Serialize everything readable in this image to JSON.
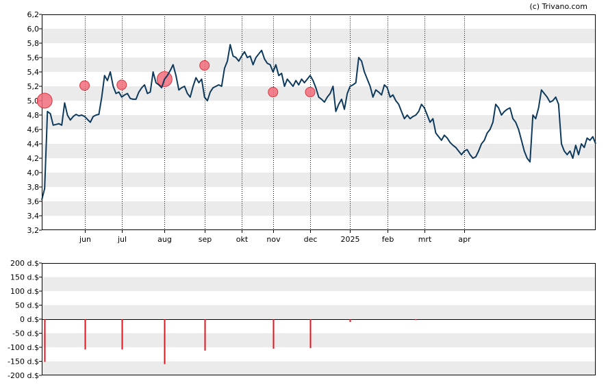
{
  "copyright": "(c) Trivano.com",
  "colors": {
    "price_line": "#0d3a5c",
    "bubble": "#f26d7d",
    "bubble_stroke": "#d9363e",
    "volume_bar": "#e0161e",
    "band": "#ebebeb",
    "vgrid": "#000000"
  },
  "chart_data": [
    {
      "type": "line",
      "title": "",
      "xlabel": "",
      "ylabel": "",
      "ylim": [
        3.2,
        6.2
      ],
      "y_ticks": [
        "6,2",
        "6,0",
        "5,8",
        "5,6",
        "5,4",
        "5,2",
        "5,0",
        "4,8",
        "4,6",
        "4,4",
        "4,2",
        "4,0",
        "3,8",
        "3,6",
        "3,4",
        "3,2"
      ],
      "x_ticks": [
        "jun",
        "jul",
        "aug",
        "sep",
        "okt",
        "nov",
        "dec",
        "2025",
        "feb",
        "mrt",
        "apr"
      ],
      "x_tick_index": [
        15,
        28,
        43,
        57,
        70,
        81,
        94,
        108,
        121,
        134,
        148
      ],
      "grid": "horizontal bands, dotted vertical lines at month starts",
      "series": [
        {
          "values": [
            3.62,
            3.78,
            4.85,
            4.82,
            4.66,
            4.67,
            4.68,
            4.66,
            4.97,
            4.8,
            4.73,
            4.78,
            4.81,
            4.79,
            4.8,
            4.78,
            4.74,
            4.7,
            4.78,
            4.8,
            4.81,
            5.05,
            5.35,
            5.28,
            5.4,
            5.2,
            5.1,
            5.12,
            5.05,
            5.08,
            5.1,
            5.03,
            5.02,
            5.02,
            5.12,
            5.18,
            5.22,
            5.1,
            5.12,
            5.4,
            5.25,
            5.22,
            5.18,
            5.3,
            5.35,
            5.42,
            5.5,
            5.35,
            5.15,
            5.18,
            5.2,
            5.1,
            5.05,
            5.2,
            5.32,
            5.25,
            5.3,
            5.05,
            5.0,
            5.12,
            5.18,
            5.2,
            5.22,
            5.2,
            5.45,
            5.55,
            5.78,
            5.62,
            5.6,
            5.55,
            5.62,
            5.68,
            5.6,
            5.62,
            5.5,
            5.6,
            5.65,
            5.7,
            5.58,
            5.52,
            5.5,
            5.4,
            5.5,
            5.35,
            5.38,
            5.2,
            5.3,
            5.25,
            5.2,
            5.28,
            5.22,
            5.3,
            5.25,
            5.3,
            5.35,
            5.28,
            5.18,
            5.05,
            5.02,
            4.98,
            5.05,
            5.1,
            5.2,
            4.85,
            4.95,
            5.02,
            4.88,
            5.1,
            5.2,
            5.22,
            5.25,
            5.6,
            5.55,
            5.4,
            5.3,
            5.2,
            5.05,
            5.15,
            5.12,
            5.08,
            5.22,
            5.18,
            5.05,
            5.08,
            5.0,
            4.95,
            4.85,
            4.75,
            4.8,
            4.75,
            4.78,
            4.8,
            4.85,
            4.95,
            4.9,
            4.8,
            4.7,
            4.75,
            4.55,
            4.5,
            4.45,
            4.52,
            4.48,
            4.42,
            4.38,
            4.35,
            4.3,
            4.25,
            4.3,
            4.32,
            4.25,
            4.2,
            4.22,
            4.3,
            4.4,
            4.45,
            4.55,
            4.6,
            4.7,
            4.95,
            4.9,
            4.8,
            4.85,
            4.88,
            4.9,
            4.75,
            4.7,
            4.6,
            4.45,
            4.3,
            4.2,
            4.15,
            4.8,
            4.75,
            4.9,
            5.15,
            5.1,
            5.05,
            4.98,
            5.0,
            5.05,
            4.95,
            4.4,
            4.3,
            4.25,
            4.3,
            4.2,
            4.38,
            4.25,
            4.4,
            4.35,
            4.48,
            4.45,
            4.5,
            4.4
          ]
        }
      ],
      "bubbles": [
        {
          "index": 1,
          "value": 5.0,
          "size": "large"
        },
        {
          "index": 15,
          "value": 5.21,
          "size": "small"
        },
        {
          "index": 28,
          "value": 5.22,
          "size": "small"
        },
        {
          "index": 43,
          "value": 5.3,
          "size": "large"
        },
        {
          "index": 57,
          "value": 5.49,
          "size": "small"
        },
        {
          "index": 81,
          "value": 5.12,
          "size": "small"
        },
        {
          "index": 94,
          "value": 5.12,
          "size": "small"
        }
      ]
    },
    {
      "type": "bar",
      "title": "",
      "xlabel": "",
      "ylabel": "",
      "ylim": [
        -200,
        200
      ],
      "y_ticks": [
        "200 d.$",
        "150 d.$",
        "100 d.$",
        "50 d.$",
        "0 d.$",
        "-50 d.$",
        "-100 d.$",
        "-150 d.$",
        "-200 d.$"
      ],
      "bars": [
        {
          "index": 1,
          "value": -152
        },
        {
          "index": 15,
          "value": -108
        },
        {
          "index": 28,
          "value": -108
        },
        {
          "index": 43,
          "value": -160
        },
        {
          "index": 57,
          "value": -112
        },
        {
          "index": 81,
          "value": -105
        },
        {
          "index": 94,
          "value": -103
        },
        {
          "index": 108,
          "value": -10
        },
        {
          "index": 131,
          "value": -3
        }
      ]
    }
  ]
}
